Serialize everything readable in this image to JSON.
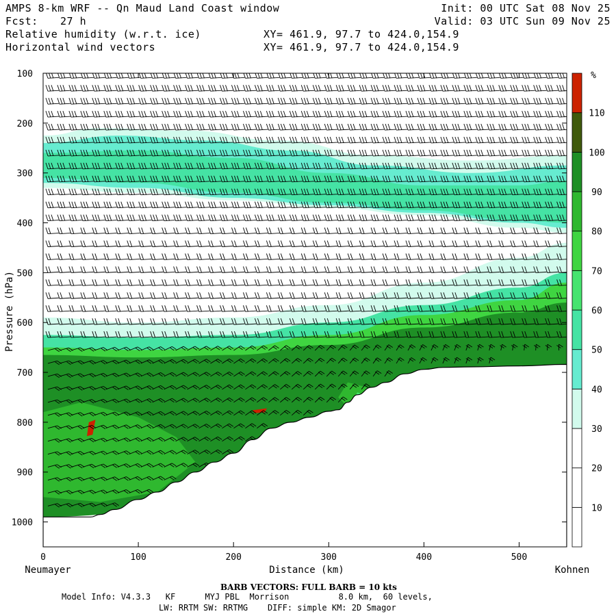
{
  "header": {
    "title": "AMPS 8-km WRF -- Qn Maud Land Coast window",
    "fcst_label": "Fcst:",
    "fcst_value": "27 h",
    "field1": "Relative humidity (w.r.t. ice)",
    "field2": "Horizontal wind vectors",
    "init": "Init: 00 UTC Sat 08 Nov 25",
    "valid": "Valid: 03 UTC Sun 09 Nov 25",
    "xy1": "XY= 461.9, 97.7 to 424.0,154.9",
    "xy2": "XY= 461.9, 97.7 to 424.0,154.9"
  },
  "footer": {
    "barb_note": "BARB VECTORS:  FULL BARB = 10 kts",
    "model_info_1": "Model Info: V4.3.3   KF      MYJ PBL  Morrison          8.0 km,  60 levels,",
    "model_info_2": "LW: RRTM SW: RRTMG    DIFF: simple KM: 2D Smagor"
  },
  "chart_data": {
    "type": "heatmap",
    "title": "Relative humidity (w.r.t. ice)",
    "xlabel": "Distance (km)",
    "ylabel": "Pressure (hPa)",
    "x_left_label": "Neumayer",
    "x_right_label": "Kohnen",
    "xlim": [
      0,
      550
    ],
    "ylim": [
      1050,
      100
    ],
    "x_ticks": [
      0,
      100,
      200,
      300,
      400,
      500
    ],
    "y_ticks": [
      100,
      200,
      300,
      400,
      500,
      600,
      700,
      800,
      900,
      1000
    ],
    "colorbar": {
      "unit": "%",
      "ticks": [
        10,
        20,
        30,
        40,
        50,
        60,
        70,
        80,
        90,
        100,
        110
      ],
      "levels": [
        0,
        10,
        20,
        30,
        40,
        50,
        60,
        70,
        80,
        90,
        100,
        110,
        120
      ],
      "colors": [
        "#ffffff",
        "#ffffff",
        "#ffffff",
        "#d2fbed",
        "#66ecd0",
        "#45e3a4",
        "#46e46f",
        "#3fd541",
        "#2fb82f",
        "#1e8f25",
        "#3f5a0c",
        "#cc2200"
      ]
    },
    "terrain_surface_hpa": [
      [
        0,
        990
      ],
      [
        20,
        990
      ],
      [
        50,
        990
      ],
      [
        60,
        985
      ],
      [
        75,
        975
      ],
      [
        100,
        955
      ],
      [
        120,
        940
      ],
      [
        140,
        920
      ],
      [
        160,
        900
      ],
      [
        180,
        880
      ],
      [
        200,
        862
      ],
      [
        220,
        835
      ],
      [
        240,
        812
      ],
      [
        260,
        800
      ],
      [
        280,
        790
      ],
      [
        300,
        778
      ],
      [
        310,
        775
      ],
      [
        320,
        760
      ],
      [
        330,
        745
      ],
      [
        345,
        730
      ],
      [
        360,
        720
      ],
      [
        380,
        703
      ],
      [
        400,
        694
      ],
      [
        420,
        690
      ],
      [
        450,
        689
      ],
      [
        500,
        687
      ],
      [
        550,
        684
      ]
    ],
    "rh_layers": [
      {
        "level": 30,
        "top": [
          [
            0,
            225
          ],
          [
            60,
            210
          ],
          [
            150,
            215
          ],
          [
            250,
            235
          ],
          [
            350,
            265
          ],
          [
            450,
            275
          ],
          [
            550,
            265
          ]
        ],
        "bottom": [
          [
            0,
            330
          ],
          [
            100,
            340
          ],
          [
            200,
            355
          ],
          [
            300,
            370
          ],
          [
            400,
            385
          ],
          [
            500,
            410
          ],
          [
            550,
            420
          ]
        ]
      },
      {
        "level": 40,
        "top": [
          [
            0,
            240
          ],
          [
            80,
            225
          ],
          [
            170,
            235
          ],
          [
            260,
            255
          ],
          [
            350,
            285
          ],
          [
            450,
            300
          ],
          [
            550,
            285
          ]
        ],
        "bottom": [
          [
            0,
            320
          ],
          [
            100,
            330
          ],
          [
            200,
            350
          ],
          [
            300,
            365
          ],
          [
            400,
            380
          ],
          [
            500,
            400
          ],
          [
            550,
            410
          ]
        ]
      },
      {
        "level": 50,
        "top": [
          [
            0,
            260
          ],
          [
            100,
            255
          ],
          [
            200,
            270
          ],
          [
            300,
            300
          ],
          [
            400,
            325
          ],
          [
            500,
            325
          ],
          [
            550,
            315
          ]
        ],
        "bottom": [
          [
            0,
            310
          ],
          [
            100,
            320
          ],
          [
            200,
            340
          ],
          [
            300,
            360
          ],
          [
            400,
            375
          ],
          [
            500,
            395
          ],
          [
            550,
            400
          ]
        ]
      },
      {
        "level": 30,
        "top": [
          [
            0,
            590
          ],
          [
            100,
            600
          ],
          [
            200,
            590
          ],
          [
            300,
            565
          ],
          [
            400,
            520
          ],
          [
            500,
            470
          ],
          [
            550,
            440
          ]
        ],
        "bottom": [
          [
            0,
            660
          ],
          [
            100,
            655
          ],
          [
            200,
            645
          ],
          [
            300,
            610
          ],
          [
            400,
            580
          ],
          [
            500,
            560
          ],
          [
            550,
            550
          ]
        ]
      },
      {
        "level": 50,
        "top": [
          [
            0,
            625
          ],
          [
            100,
            630
          ],
          [
            200,
            625
          ],
          [
            300,
            600
          ],
          [
            400,
            565
          ],
          [
            500,
            530
          ],
          [
            550,
            500
          ]
        ],
        "bottom": [
          [
            0,
            670
          ],
          [
            100,
            670
          ],
          [
            200,
            660
          ],
          [
            300,
            630
          ],
          [
            400,
            600
          ],
          [
            500,
            580
          ],
          [
            550,
            570
          ]
        ]
      },
      {
        "level": 70,
        "top": [
          [
            0,
            650
          ],
          [
            100,
            655
          ],
          [
            200,
            650
          ],
          [
            300,
            625
          ],
          [
            400,
            585
          ],
          [
            500,
            555
          ],
          [
            550,
            520
          ]
        ],
        "bottom": [
          [
            0,
            680
          ],
          [
            100,
            680
          ],
          [
            200,
            672
          ],
          [
            300,
            650
          ],
          [
            400,
            620
          ],
          [
            500,
            600
          ],
          [
            550,
            590
          ]
        ]
      },
      {
        "level": 90,
        "top": [
          [
            0,
            665
          ],
          [
            100,
            670
          ],
          [
            200,
            665
          ],
          [
            300,
            645
          ],
          [
            400,
            610
          ],
          [
            500,
            580
          ],
          [
            550,
            560
          ]
        ],
        "bottom": [
          [
            0,
            990
          ],
          [
            550,
            690
          ]
        ]
      }
    ],
    "rh_blobs": [
      {
        "level": 80,
        "points": [
          [
            0,
            780
          ],
          [
            40,
            760
          ],
          [
            100,
            790
          ],
          [
            140,
            830
          ],
          [
            160,
            880
          ],
          [
            120,
            940
          ],
          [
            60,
            960
          ],
          [
            0,
            950
          ]
        ]
      },
      {
        "level": 80,
        "points": [
          [
            320,
            720
          ],
          [
            340,
            730
          ],
          [
            355,
            760
          ],
          [
            340,
            780
          ],
          [
            320,
            770
          ],
          [
            310,
            750
          ]
        ]
      },
      {
        "level": 60,
        "points": [
          [
            330,
            740
          ],
          [
            345,
            750
          ],
          [
            350,
            770
          ],
          [
            335,
            775
          ],
          [
            325,
            760
          ]
        ]
      },
      {
        "level": 110,
        "points": [
          [
            48,
            800
          ],
          [
            55,
            795
          ],
          [
            52,
            825
          ],
          [
            46,
            828
          ]
        ]
      },
      {
        "level": 110,
        "points": [
          [
            220,
            776
          ],
          [
            235,
            772
          ],
          [
            233,
            780
          ],
          [
            222,
            782
          ]
        ]
      }
    ],
    "wind_profile_description": "upper-level westerly barbs; near-surface katabatic barbs",
    "wind_speed_upper_kts": 25,
    "wind_speed_low_kts": 15
  }
}
